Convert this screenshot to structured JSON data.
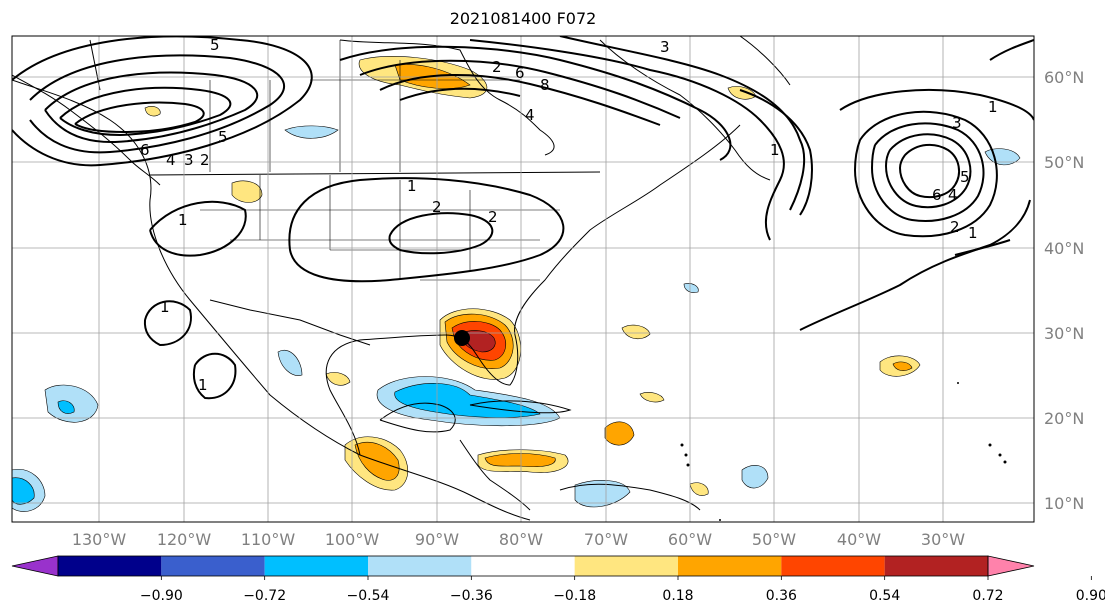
{
  "title": "2021081400 F072",
  "map": {
    "longitude_labels": [
      "130°W",
      "120°W",
      "110°W",
      "100°W",
      "90°W",
      "80°W",
      "70°W",
      "60°W",
      "50°W",
      "40°W",
      "30°W"
    ],
    "latitude_labels": [
      "60°N",
      "50°N",
      "40°N",
      "30°N",
      "20°N",
      "10°N"
    ],
    "gridlines": true,
    "contour_labels": [
      "5",
      "3",
      "6",
      "2",
      "8",
      "4",
      "1",
      "5",
      "6",
      "4",
      "3",
      "2",
      "1",
      "1",
      "2",
      "2",
      "1",
      "1",
      "1",
      "3",
      "5",
      "6",
      "4",
      "2",
      "1"
    ],
    "storm_marker": "filled-circle"
  },
  "colorbar": {
    "tick_labels": [
      "−0.90",
      "−0.72",
      "−0.54",
      "−0.36",
      "−0.18",
      "0.18",
      "0.36",
      "0.54",
      "0.72",
      "0.90"
    ],
    "colors": [
      "#9932cc",
      "#00008b",
      "#3a5fcd",
      "#00bfff",
      "#b0e0f8",
      "#ffffff",
      "#ffe680",
      "#ffa500",
      "#ff4500",
      "#b22222",
      "#ff82ab"
    ],
    "extend": "both"
  },
  "colors": {
    "contour": "#000000",
    "grid": "#a0a0a0",
    "coast": "#000000"
  }
}
